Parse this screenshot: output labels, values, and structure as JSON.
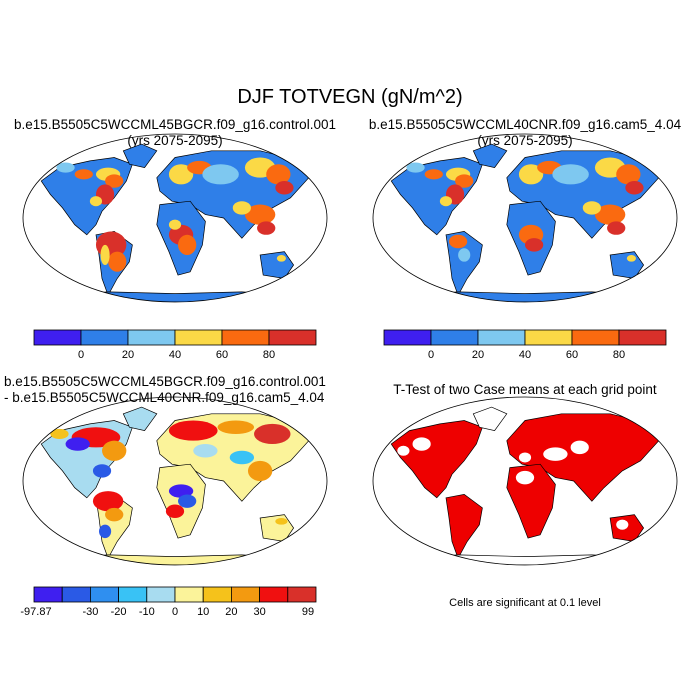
{
  "main_title": "DJF TOTVEGN (gN/m^2)",
  "panels": {
    "top_left": {
      "title_line1": "b.e15.B5505C5WCCML45BGCR.f09_g16.control.001",
      "title_line2": "(yrs 2075-2095)"
    },
    "top_right": {
      "title_line1": "b.e15.B5505C5WCCML40CNR.f09_g16.cam5_4.04",
      "title_line2": "(yrs 2075-2095)"
    },
    "bottom_left": {
      "title_line1": "b.e15.B5505C5WCCML45BGCR.f09_g16.control.001",
      "title_line2": "- b.e15.B5505C5WCCML40CNR.f09_g16.cam5_4.04"
    },
    "bottom_right": {
      "title": "T-Test of two Case means at each grid point",
      "footnote": "Cells are significant at 0.1 level"
    }
  },
  "chart_data": [
    {
      "type": "heatmap",
      "title": "b.e15.B5505C5WCCML45BGCR.f09_g16.control.001 (yrs 2075-2095)",
      "colorbar": {
        "labels": [
          "0",
          "20",
          "40",
          "60",
          "80"
        ],
        "colors": [
          "#3f1ff0",
          "#2f7fe8",
          "#7ec8f0",
          "#fbd946",
          "#fa6a10",
          "#d9302a"
        ]
      }
    },
    {
      "type": "heatmap",
      "title": "b.e15.B5505C5WCCML40CNR.f09_g16.cam5_4.04 (yrs 2075-2095)",
      "colorbar": {
        "labels": [
          "0",
          "20",
          "40",
          "60",
          "80"
        ],
        "colors": [
          "#3f1ff0",
          "#2f7fe8",
          "#7ec8f0",
          "#fbd946",
          "#fa6a10",
          "#d9302a"
        ]
      }
    },
    {
      "type": "heatmap",
      "title": "b.e15.B5505C5WCCML45BGCR.f09_g16.control.001 - b.e15.B5505C5WCCML40CNR.f09_g16.cam5_4.04",
      "colorbar": {
        "labels": [
          "-97.87",
          "-30",
          "-20",
          "-10",
          "0",
          "10",
          "20",
          "30",
          "99"
        ],
        "colors": [
          "#3f1ff0",
          "#2a5ae6",
          "#2f8ff0",
          "#39c2f5",
          "#a8dcf0",
          "#fbf39a",
          "#f5c21b",
          "#f39a10",
          "#f01010",
          "#d9302a"
        ]
      }
    },
    {
      "type": "heatmap",
      "title": "T-Test of two Case means at each grid point",
      "colorbar": {
        "labels": [],
        "colors": [
          "#ee0000"
        ]
      }
    }
  ]
}
